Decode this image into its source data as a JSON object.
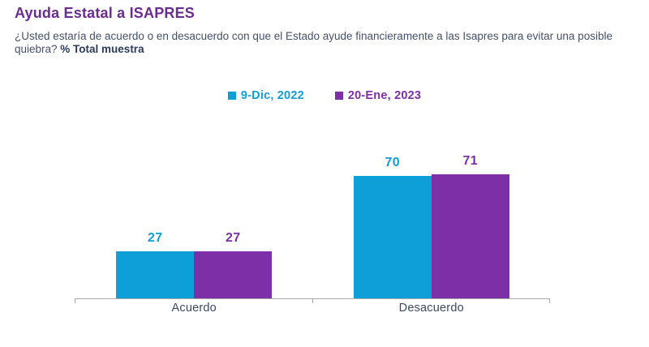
{
  "header": {
    "title": "Ayuda Estatal a ISAPRES",
    "question": "¿Usted estaría de acuerdo o en desacuerdo con que el Estado ayude financieramente a las Isapres para evitar una posible quiebra? ",
    "sample_note": "% Total muestra"
  },
  "colors": {
    "title": "#6a2c91",
    "subtitle_text": "#46506b",
    "series1": "#0f9fd8",
    "series2": "#7c2fa6",
    "axis": "#a9a9a9",
    "category_label": "#3e495e"
  },
  "chart_data": {
    "type": "bar",
    "title": "Ayuda Estatal a ISAPRES",
    "subtitle": "¿Usted estaría de acuerdo o en desacuerdo con que el Estado ayude financieramente a las Isapres para evitar una posible quiebra? % Total muestra",
    "categories": [
      "Acuerdo",
      "Desacuerdo"
    ],
    "series": [
      {
        "name": "9-Dic, 2022",
        "color": "#0f9fd8",
        "values": [
          27,
          70
        ]
      },
      {
        "name": "20-Ene, 2023",
        "color": "#7c2fa6",
        "values": [
          27,
          71
        ]
      }
    ],
    "ylim": [
      0,
      100
    ],
    "grid": false,
    "legend_position": "top",
    "data_labels": true
  }
}
